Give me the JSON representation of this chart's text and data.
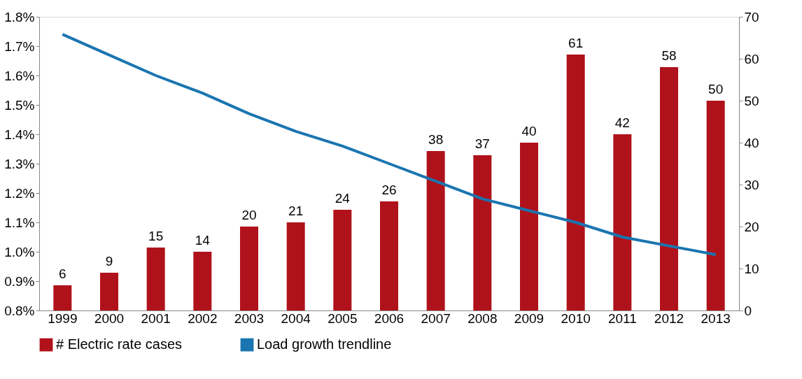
{
  "chart_data": {
    "type": "bar",
    "categories": [
      "1999",
      "2000",
      "2001",
      "2002",
      "2003",
      "2004",
      "2005",
      "2006",
      "2007",
      "2008",
      "2009",
      "2010",
      "2011",
      "2012",
      "2013"
    ],
    "series": [
      {
        "name": "# Electric rate cases",
        "axis": "y2",
        "color": "#b0121b",
        "values": [
          6,
          9,
          15,
          14,
          20,
          21,
          24,
          26,
          38,
          37,
          40,
          61,
          42,
          58,
          50
        ],
        "value_labels": [
          "6",
          "9",
          "15",
          "14",
          "20",
          "21",
          "24",
          "26",
          "38",
          "37",
          "40",
          "61",
          "42",
          "58",
          "50"
        ]
      },
      {
        "name": "Load growth trendline",
        "type": "line",
        "color": "#1a75b0",
        "values": [
          1.74,
          1.67,
          1.6,
          1.54,
          1.47,
          1.41,
          1.36,
          1.3,
          1.24,
          1.18,
          1.14,
          1.1,
          1.05,
          1.02,
          0.99
        ]
      }
    ],
    "ylim": [
      0.8,
      1.8
    ],
    "yticks": [
      {
        "value": 0.8,
        "label": "0.8%"
      },
      {
        "value": 0.9,
        "label": "0.9%"
      },
      {
        "value": 1.0,
        "label": "1.0%"
      },
      {
        "value": 1.1,
        "label": "1.1%"
      },
      {
        "value": 1.2,
        "label": "1.2%"
      },
      {
        "value": 1.3,
        "label": "1.3%"
      },
      {
        "value": 1.4,
        "label": "1.4%"
      },
      {
        "value": 1.5,
        "label": "1.5%"
      },
      {
        "value": 1.6,
        "label": "1.6%"
      },
      {
        "value": 1.7,
        "label": "1.7%"
      },
      {
        "value": 1.8,
        "label": "1.8%"
      }
    ],
    "y2lim": [
      0,
      70
    ],
    "y2ticks": [
      0,
      10,
      20,
      30,
      40,
      50,
      60,
      70
    ],
    "legend": "bottom",
    "grid": false,
    "line_style": "solid",
    "marker": "none"
  }
}
